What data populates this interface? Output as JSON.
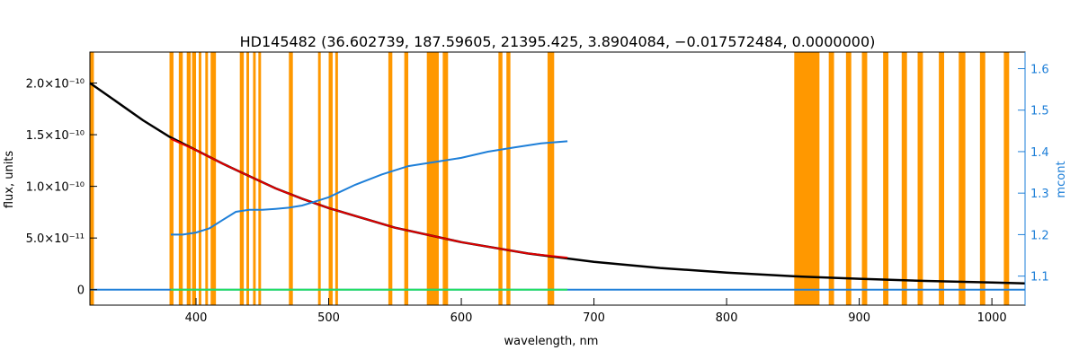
{
  "chart_data": {
    "type": "line",
    "title": "HD145482   (36.602739, 187.59605, 21395.425, 3.8904084, −0.017572484, 0.0000000)",
    "xlabel": "wavelength, nm",
    "ylabel": "flux, units",
    "y2label": "mcont",
    "xlim": [
      320,
      1025
    ],
    "ylim": [
      -1.5e-11,
      2.3e-10
    ],
    "y2lim": [
      1.03,
      1.64
    ],
    "x_ticks": [
      400,
      500,
      600,
      700,
      800,
      900,
      1000
    ],
    "y_ticks": [
      {
        "value": 0,
        "label": "0"
      },
      {
        "value": 5e-11,
        "label": "5.0×10⁻¹¹"
      },
      {
        "value": 1e-10,
        "label": "1.0×10⁻¹⁰"
      },
      {
        "value": 1.5e-10,
        "label": "1.5×10⁻¹⁰"
      },
      {
        "value": 2e-10,
        "label": "2.0×10⁻¹⁰"
      }
    ],
    "y2_ticks": [
      1.1,
      1.2,
      1.3,
      1.4,
      1.5,
      1.6
    ],
    "mask_bands": [
      [
        320,
        323
      ],
      [
        380,
        383
      ],
      [
        387,
        390
      ],
      [
        393,
        396
      ],
      [
        397,
        400
      ],
      [
        402,
        404
      ],
      [
        407,
        409
      ],
      [
        411,
        415
      ],
      [
        433,
        436
      ],
      [
        438,
        440
      ],
      [
        443,
        445
      ],
      [
        447,
        449
      ],
      [
        470,
        473
      ],
      [
        492,
        494
      ],
      [
        500,
        503
      ],
      [
        505,
        507
      ],
      [
        545,
        548
      ],
      [
        557,
        560
      ],
      [
        574,
        583
      ],
      [
        586,
        590
      ],
      [
        628,
        631
      ],
      [
        634,
        637
      ],
      [
        665,
        670
      ],
      [
        851,
        870
      ],
      [
        877,
        881
      ],
      [
        890,
        894
      ],
      [
        902,
        906
      ],
      [
        918,
        922
      ],
      [
        932,
        936
      ],
      [
        944,
        948
      ],
      [
        960,
        964
      ],
      [
        975,
        980
      ],
      [
        991,
        995
      ],
      [
        1009,
        1013
      ]
    ],
    "series": [
      {
        "color": "#000000",
        "axis": "left",
        "x": [
          320,
          340,
          360,
          380,
          400,
          420,
          440,
          460,
          480,
          500,
          550,
          600,
          650,
          700,
          750,
          800,
          850,
          900,
          950,
          1000,
          1025
        ],
        "values": [
          2e-10,
          1.82e-10,
          1.64e-10,
          1.48e-10,
          1.35e-10,
          1.22e-10,
          1.1e-10,
          9.8e-11,
          8.8e-11,
          7.9e-11,
          6e-11,
          4.6e-11,
          3.5e-11,
          2.7e-11,
          2.1e-11,
          1.65e-11,
          1.3e-11,
          1.05e-11,
          8.5e-12,
          7e-12,
          6e-12
        ]
      },
      {
        "color": "#e00000",
        "axis": "left",
        "x": [
          381,
          400,
          420,
          440,
          460,
          480,
          500,
          550,
          600,
          650,
          680
        ],
        "values": [
          1.46e-10,
          1.35e-10,
          1.22e-10,
          1.1e-10,
          9.8e-11,
          8.8e-11,
          7.9e-11,
          6e-11,
          4.6e-11,
          3.5e-11,
          3.1e-11
        ]
      },
      {
        "color": "#1e7fd8",
        "axis": "right",
        "x": [
          381,
          390,
          400,
          410,
          420,
          430,
          440,
          450,
          460,
          470,
          480,
          490,
          500,
          520,
          540,
          560,
          580,
          600,
          620,
          640,
          660,
          680
        ],
        "values": [
          1.2,
          1.2,
          1.205,
          1.215,
          1.235,
          1.255,
          1.26,
          1.26,
          1.262,
          1.265,
          1.27,
          1.28,
          1.29,
          1.32,
          1.345,
          1.365,
          1.375,
          1.385,
          1.4,
          1.41,
          1.42,
          1.425
        ]
      },
      {
        "color": "#1e7fd8",
        "axis": "left",
        "x": [
          320,
          1025
        ],
        "values": [
          0,
          0
        ]
      },
      {
        "color": "#22e060",
        "axis": "left",
        "x": [
          381,
          680
        ],
        "values": [
          0,
          0
        ]
      }
    ],
    "grid": false,
    "colors": {
      "mask": "#ff9800",
      "axis_left": "#000000",
      "axis_right": "#1e7fd8",
      "background": "#ffffff"
    }
  }
}
